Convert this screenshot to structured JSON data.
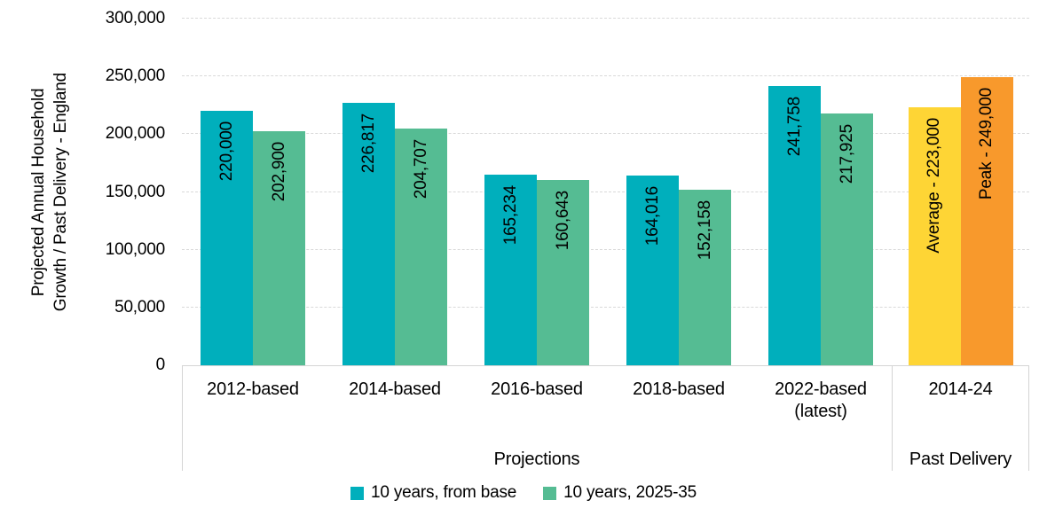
{
  "y_axis_title_lines": [
    "Projected Annual Household",
    "Growth / Past Delivery  - England"
  ],
  "chart_data": {
    "type": "bar",
    "title": "",
    "xlabel": "",
    "ylabel": "Projected Annual Household Growth / Past Delivery - England",
    "ylim": [
      0,
      300000
    ],
    "grid": "horizontal",
    "grid_style": "dashed",
    "grid_color": "#D9D9D9",
    "legend_position": "bottom",
    "yticks": [
      {
        "value": 300000,
        "label": "300,000"
      },
      {
        "value": 250000,
        "label": "250,000"
      },
      {
        "value": 200000,
        "label": "200,000"
      },
      {
        "value": 150000,
        "label": "150,000"
      },
      {
        "value": 100000,
        "label": "100,000"
      },
      {
        "value": 50000,
        "label": "50,000"
      },
      {
        "value": 0,
        "label": "0"
      }
    ],
    "series": [
      {
        "name": "10 years, from base",
        "color": "#00AFBC"
      },
      {
        "name": "10 years, 2025-35",
        "color": "#55BC93"
      }
    ],
    "groups": [
      {
        "label": "Projections",
        "categories": [
          {
            "label": "2012-based",
            "bars": [
              {
                "series": "10 years, from base",
                "value": 220000,
                "label": "220,000",
                "color": "#00AFBC"
              },
              {
                "series": "10 years, 2025-35",
                "value": 202900,
                "label": "202,900",
                "color": "#55BC93"
              }
            ]
          },
          {
            "label": "2014-based",
            "bars": [
              {
                "series": "10 years, from base",
                "value": 226817,
                "label": "226,817",
                "color": "#00AFBC"
              },
              {
                "series": "10 years, 2025-35",
                "value": 204707,
                "label": "204,707",
                "color": "#55BC93"
              }
            ]
          },
          {
            "label": "2016-based",
            "bars": [
              {
                "series": "10 years, from base",
                "value": 165234,
                "label": "165,234",
                "color": "#00AFBC"
              },
              {
                "series": "10 years, 2025-35",
                "value": 160643,
                "label": "160,643",
                "color": "#55BC93"
              }
            ]
          },
          {
            "label": "2018-based",
            "bars": [
              {
                "series": "10 years, from base",
                "value": 164016,
                "label": "164,016",
                "color": "#00AFBC"
              },
              {
                "series": "10 years, 2025-35",
                "value": 152158,
                "label": "152,158",
                "color": "#55BC93"
              }
            ]
          },
          {
            "label": "2022-based (latest)",
            "bars": [
              {
                "series": "10 years, from base",
                "value": 241758,
                "label": "241,758",
                "color": "#00AFBC"
              },
              {
                "series": "10 years, 2025-35",
                "value": 217925,
                "label": "217,925",
                "color": "#55BC93"
              }
            ]
          }
        ]
      },
      {
        "label": "Past Delivery",
        "categories": [
          {
            "label": "2014-24",
            "bars": [
              {
                "value": 223000,
                "label": "Average - 223,000",
                "color": "#FED535"
              },
              {
                "value": 249000,
                "label": "Peak - 249,000",
                "color": "#F8992C"
              }
            ]
          }
        ]
      }
    ]
  }
}
